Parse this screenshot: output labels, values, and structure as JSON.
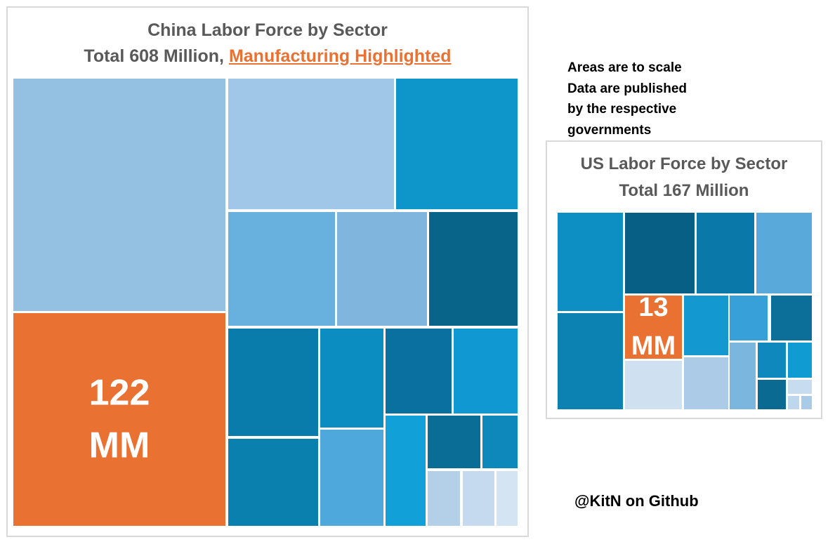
{
  "note_lines": [
    "Areas are to scale",
    "Data are published",
    "by the respective",
    "governments"
  ],
  "credit": "@KitN on Github",
  "chart_data": [
    {
      "type": "treemap",
      "title": "China Labor Force by Sector",
      "subtitle_prefix": "Total 608 Million, ",
      "subtitle_highlight": "Manufacturing Highlighted",
      "total_millions": 608,
      "highlight_color": "#e97132",
      "tiles": [
        {
          "color": "#94c0e2",
          "value": 130
        },
        {
          "color": "#e97132",
          "value": 122,
          "label": "122\nMM",
          "highlight": true
        },
        {
          "color": "#a1c7e8",
          "value": 38
        },
        {
          "color": "#0e95c9",
          "value": 27
        },
        {
          "color": "#68b0dd",
          "value": 22
        },
        {
          "color": "#80b6de",
          "value": 18
        },
        {
          "color": "#086489",
          "value": 18
        },
        {
          "color": "#0a7cab",
          "value": 20
        },
        {
          "color": "#0c8dc2",
          "value": 14
        },
        {
          "color": "#0a70a0",
          "value": 13
        },
        {
          "color": "#0f98d1",
          "value": 12
        },
        {
          "color": "#0a80af",
          "value": 19
        },
        {
          "color": "#4ea8dc",
          "value": 16
        },
        {
          "color": "#11a0d8",
          "value": 9
        },
        {
          "color": "#096d95",
          "value": 6
        },
        {
          "color": "#0e88bb",
          "value": 4
        },
        {
          "color": "#b3d0e8",
          "value": 3
        },
        {
          "color": "#c5daee",
          "value": 3
        },
        {
          "color": "#d5e4f2",
          "value": 2
        }
      ]
    },
    {
      "type": "treemap",
      "title": "US Labor Force by Sector",
      "subtitle": "Total 167 Million",
      "total_millions": 167,
      "highlight_color": "#e97132",
      "tiles": [
        {
          "color": "#0e8fc4",
          "value": 14
        },
        {
          "color": "#085f85",
          "value": 14
        },
        {
          "color": "#0a79a9",
          "value": 12
        },
        {
          "color": "#5aa9db",
          "value": 11
        },
        {
          "color": "#0b82b2",
          "value": 14
        },
        {
          "color": "#e97132",
          "value": 13,
          "label": "13\nMM",
          "highlight": true
        },
        {
          "color": "#1398d0",
          "value": 8
        },
        {
          "color": "#38a0d8",
          "value": 6
        },
        {
          "color": "#0b6f99",
          "value": 6
        },
        {
          "color": "#cfe0f0",
          "value": 9
        },
        {
          "color": "#abcbe7",
          "value": 7
        },
        {
          "color": "#7ab6de",
          "value": 5
        },
        {
          "color": "#0f89bd",
          "value": 3
        },
        {
          "color": "#109bd3",
          "value": 2
        },
        {
          "color": "#0a6a91",
          "value": 2
        },
        {
          "color": "#c7dcee",
          "value": 1
        },
        {
          "color": "#bed7ec",
          "value": 0.6
        },
        {
          "color": "#a9cbe7",
          "value": 0.5
        }
      ]
    }
  ]
}
